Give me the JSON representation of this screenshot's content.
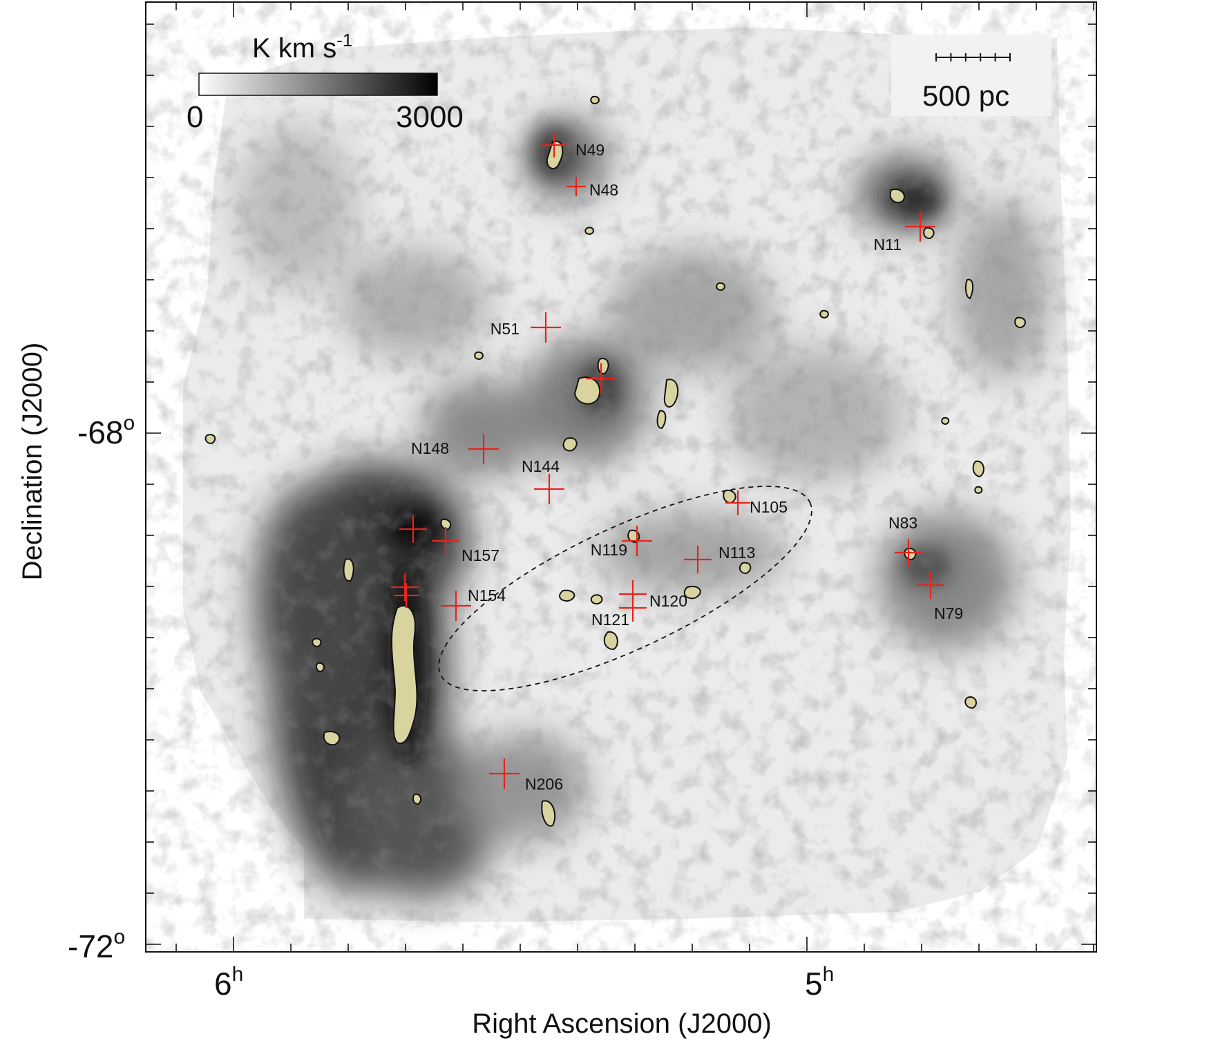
{
  "axes": {
    "xlabel": "Right Ascension (J2000)",
    "ylabel": "Declination (J2000)",
    "x_ticks": [
      {
        "base": "6",
        "sup": "h"
      },
      {
        "base": "5",
        "sup": "h"
      }
    ],
    "y_ticks": [
      {
        "base": "-68",
        "sup": "o"
      },
      {
        "base": "-72",
        "sup": "o"
      }
    ]
  },
  "colorbar": {
    "title": "K km s",
    "title_sup": "-1",
    "min_label": "0",
    "max_label": "3000",
    "colormap": [
      "#ffffff",
      "#000000"
    ]
  },
  "scalebar": {
    "label": "500 pc"
  },
  "regions": [
    {
      "name": "N49"
    },
    {
      "name": "N48"
    },
    {
      "name": "N11"
    },
    {
      "name": "N51"
    },
    {
      "name": "N148"
    },
    {
      "name": "N144"
    },
    {
      "name": "N105"
    },
    {
      "name": "N83"
    },
    {
      "name": "N119"
    },
    {
      "name": "N113"
    },
    {
      "name": "N157"
    },
    {
      "name": "N154"
    },
    {
      "name": "N120"
    },
    {
      "name": "N121"
    },
    {
      "name": "N79"
    },
    {
      "name": "N206"
    }
  ],
  "colors": {
    "marker": "#e8231c",
    "clump_fill": "#d9d3a0",
    "clump_outline": "#111111",
    "background_emission": "#8a8a8a"
  }
}
